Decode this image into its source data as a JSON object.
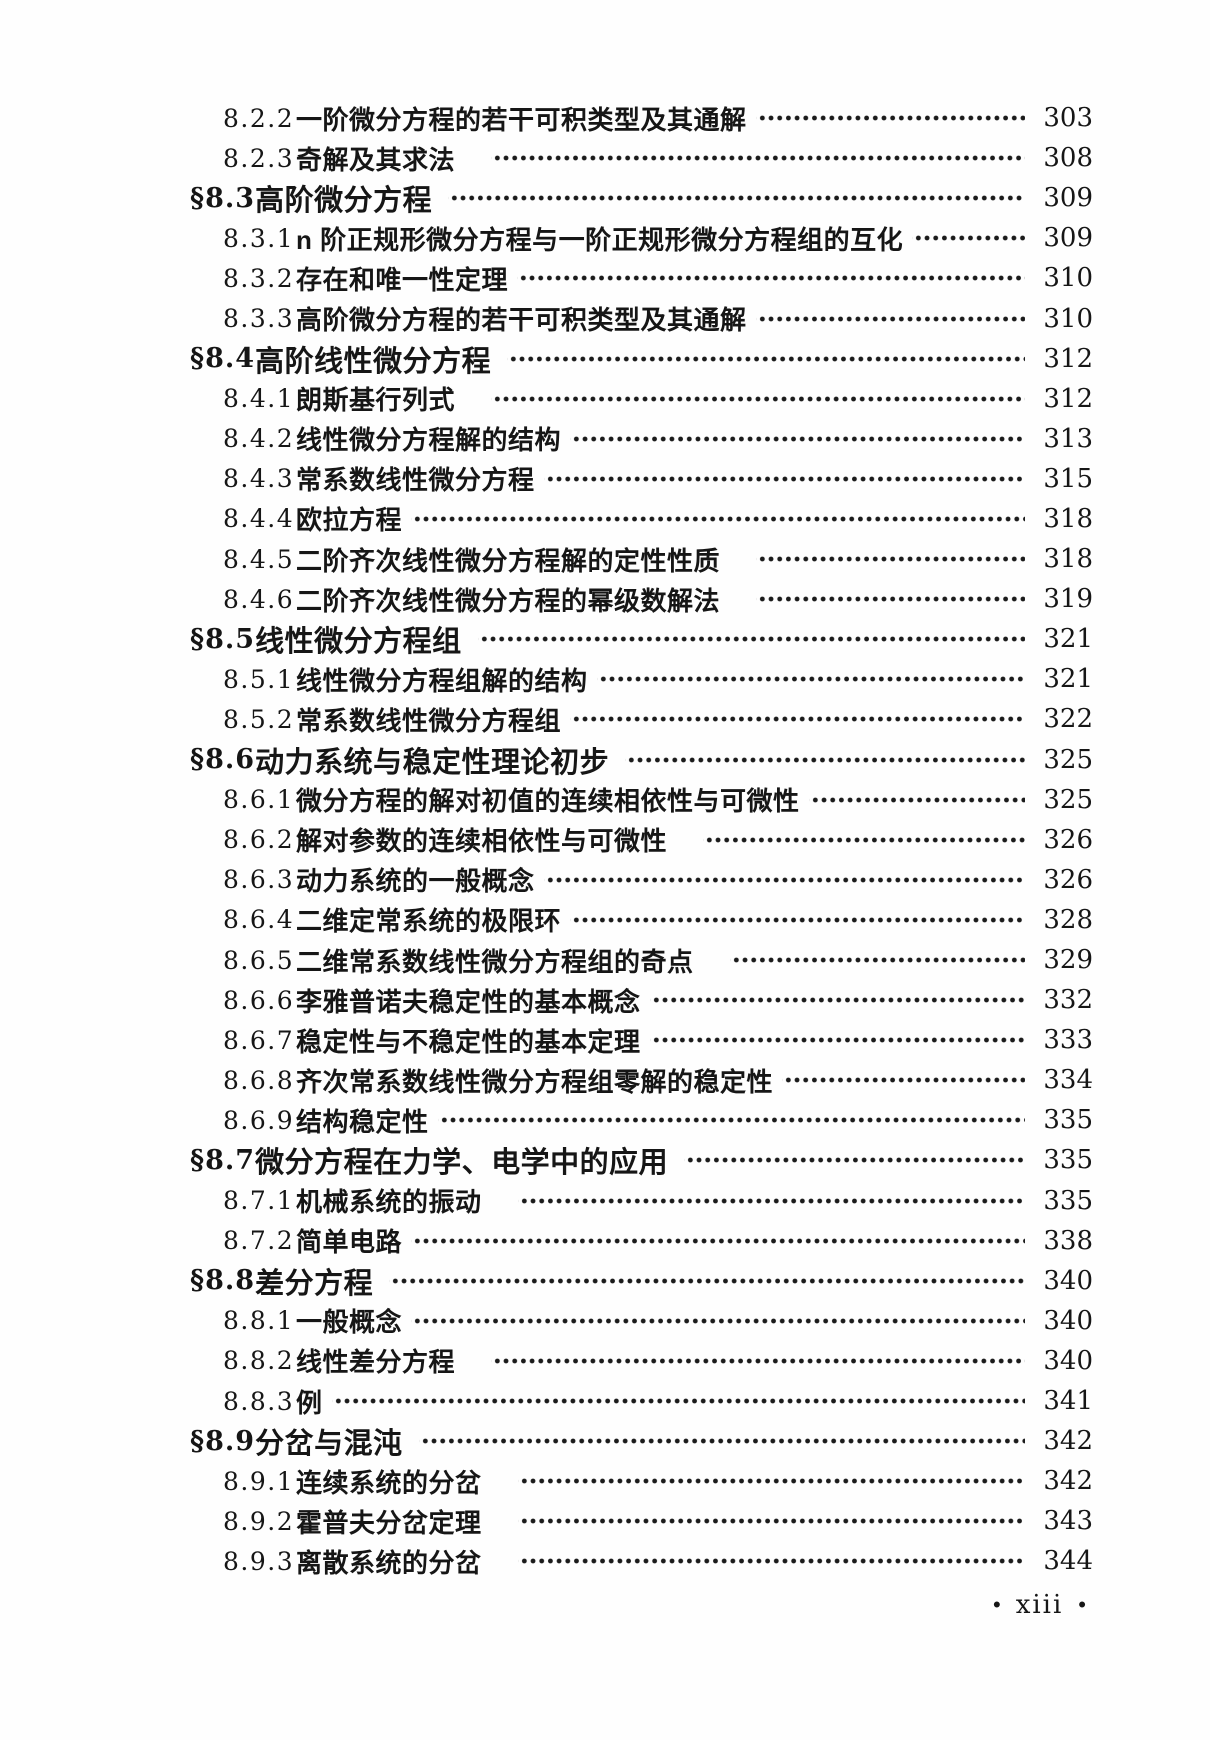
{
  "page": {
    "background_color": "#fefefe",
    "text_color": "#161616"
  },
  "toc": {
    "entries": [
      {
        "num": "8.2.2",
        "title": "一阶微分方程的若干可积类型及其通解",
        "page": "303",
        "level": "sub",
        "leader_gap": "normal"
      },
      {
        "num": "8.2.3",
        "title": "奇解及其求法",
        "page": "308",
        "level": "sub",
        "leader_gap": "wide"
      },
      {
        "num": "§8.3",
        "title": "高阶微分方程",
        "page": "309",
        "level": "section",
        "leader_gap": "normal"
      },
      {
        "num": "8.3.1",
        "title": "n 阶正规形微分方程与一阶正规形微分方程组的互化",
        "page": "309",
        "level": "sub",
        "leader_gap": "normal"
      },
      {
        "num": "8.3.2",
        "title": "存在和唯一性定理",
        "page": "310",
        "level": "sub",
        "leader_gap": "normal"
      },
      {
        "num": "8.3.3",
        "title": "高阶微分方程的若干可积类型及其通解",
        "page": "310",
        "level": "sub",
        "leader_gap": "normal"
      },
      {
        "num": "§8.4",
        "title": "高阶线性微分方程",
        "page": "312",
        "level": "section",
        "leader_gap": "normal"
      },
      {
        "num": "8.4.1",
        "title": "朗斯基行列式",
        "page": "312",
        "level": "sub",
        "leader_gap": "wide"
      },
      {
        "num": "8.4.2",
        "title": "线性微分方程解的结构",
        "page": "313",
        "level": "sub",
        "leader_gap": "normal"
      },
      {
        "num": "8.4.3",
        "title": "常系数线性微分方程",
        "page": "315",
        "level": "sub",
        "leader_gap": "normal"
      },
      {
        "num": "8.4.4",
        "title": "欧拉方程",
        "page": "318",
        "level": "sub",
        "leader_gap": "normal"
      },
      {
        "num": "8.4.5",
        "title": "二阶齐次线性微分方程解的定性性质",
        "page": "318",
        "level": "sub",
        "leader_gap": "wide"
      },
      {
        "num": "8.4.6",
        "title": "二阶齐次线性微分方程的幂级数解法",
        "page": "319",
        "level": "sub",
        "leader_gap": "wide"
      },
      {
        "num": "§8.5",
        "title": "线性微分方程组",
        "page": "321",
        "level": "section",
        "leader_gap": "normal"
      },
      {
        "num": "8.5.1",
        "title": "线性微分方程组解的结构",
        "page": "321",
        "level": "sub",
        "leader_gap": "normal"
      },
      {
        "num": "8.5.2",
        "title": "常系数线性微分方程组",
        "page": "322",
        "level": "sub",
        "leader_gap": "normal"
      },
      {
        "num": "§8.6",
        "title": "动力系统与稳定性理论初步",
        "page": "325",
        "level": "section",
        "leader_gap": "normal"
      },
      {
        "num": "8.6.1",
        "title": "微分方程的解对初值的连续相依性与可微性",
        "page": "325",
        "level": "sub",
        "leader_gap": "normal"
      },
      {
        "num": "8.6.2",
        "title": "解对参数的连续相依性与可微性",
        "page": "326",
        "level": "sub",
        "leader_gap": "wide"
      },
      {
        "num": "8.6.3",
        "title": "动力系统的一般概念",
        "page": "326",
        "level": "sub",
        "leader_gap": "normal"
      },
      {
        "num": "8.6.4",
        "title": "二维定常系统的极限环",
        "page": "328",
        "level": "sub",
        "leader_gap": "normal"
      },
      {
        "num": "8.6.5",
        "title": "二维常系数线性微分方程组的奇点",
        "page": "329",
        "level": "sub",
        "leader_gap": "wide"
      },
      {
        "num": "8.6.6",
        "title": "李雅普诺夫稳定性的基本概念",
        "page": "332",
        "level": "sub",
        "leader_gap": "normal"
      },
      {
        "num": "8.6.7",
        "title": "稳定性与不稳定性的基本定理",
        "page": "333",
        "level": "sub",
        "leader_gap": "normal"
      },
      {
        "num": "8.6.8",
        "title": "齐次常系数线性微分方程组零解的稳定性",
        "page": "334",
        "level": "sub",
        "leader_gap": "normal"
      },
      {
        "num": "8.6.9",
        "title": "结构稳定性",
        "page": "335",
        "level": "sub",
        "leader_gap": "normal"
      },
      {
        "num": "§8.7",
        "title": "微分方程在力学、电学中的应用",
        "page": "335",
        "level": "section",
        "leader_gap": "normal"
      },
      {
        "num": "8.7.1",
        "title": "机械系统的振动",
        "page": "335",
        "level": "sub",
        "leader_gap": "wide"
      },
      {
        "num": "8.7.2",
        "title": "简单电路",
        "page": "338",
        "level": "sub",
        "leader_gap": "normal"
      },
      {
        "num": "§8.8",
        "title": "差分方程",
        "page": "340",
        "level": "section",
        "leader_gap": "normal"
      },
      {
        "num": "8.8.1",
        "title": "一般概念",
        "page": "340",
        "level": "sub",
        "leader_gap": "normal"
      },
      {
        "num": "8.8.2",
        "title": "线性差分方程",
        "page": "340",
        "level": "sub",
        "leader_gap": "wide"
      },
      {
        "num": "8.8.3",
        "title": "例",
        "page": "341",
        "level": "sub",
        "leader_gap": "normal"
      },
      {
        "num": "§8.9",
        "title": "分岔与混沌",
        "page": "342",
        "level": "section",
        "leader_gap": "normal"
      },
      {
        "num": "8.9.1",
        "title": "连续系统的分岔",
        "page": "342",
        "level": "sub",
        "leader_gap": "wide"
      },
      {
        "num": "8.9.2",
        "title": "霍普夫分岔定理",
        "page": "343",
        "level": "sub",
        "leader_gap": "wide"
      },
      {
        "num": "8.9.3",
        "title": "离散系统的分岔",
        "page": "344",
        "level": "sub",
        "leader_gap": "wide"
      }
    ]
  },
  "footer": {
    "bullet_left": "•",
    "page_label": "xiii",
    "bullet_right": "•"
  }
}
